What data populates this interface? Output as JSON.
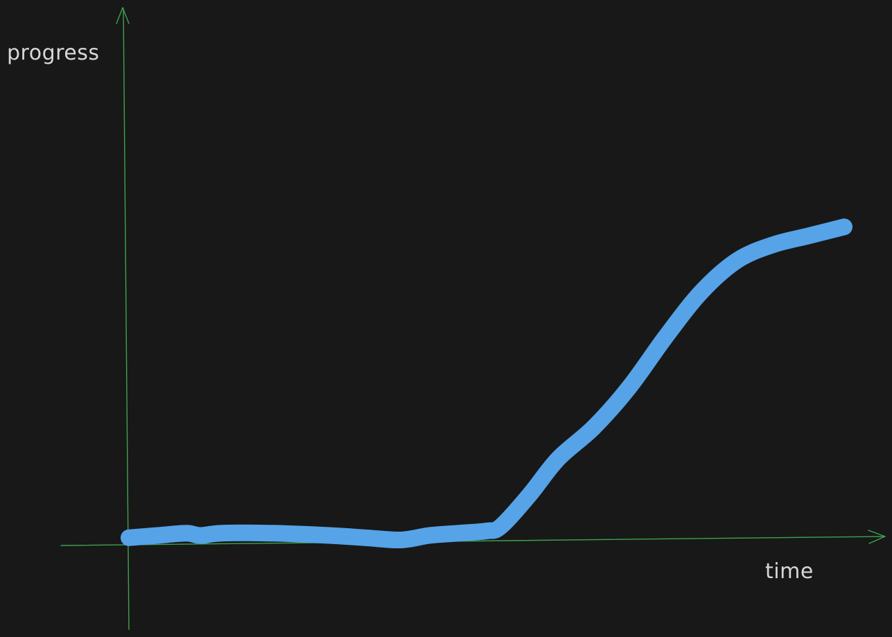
{
  "chart_data": {
    "type": "line",
    "title": "",
    "xlabel": "time",
    "ylabel": "progress",
    "xlim": [
      0,
      100
    ],
    "ylim": [
      0,
      100
    ],
    "grid": false,
    "legend": "none",
    "series": [
      {
        "values_x": [
          0,
          4,
          8,
          10,
          13,
          20,
          28,
          33,
          38,
          42,
          46,
          50,
          52,
          56,
          60,
          65,
          70,
          75,
          80,
          85,
          90,
          95,
          100
        ],
        "values_y": [
          0.5,
          1,
          1.5,
          1,
          1.5,
          1.5,
          1,
          0.5,
          0,
          1,
          1.5,
          2,
          3,
          10,
          18,
          25,
          34,
          45,
          55,
          62,
          65.5,
          67.5,
          69.5
        ]
      }
    ]
  },
  "colors": {
    "background": "#181818",
    "axis": "#3fa34d",
    "line": "#56a3e8",
    "text": "#d8d8d8"
  }
}
